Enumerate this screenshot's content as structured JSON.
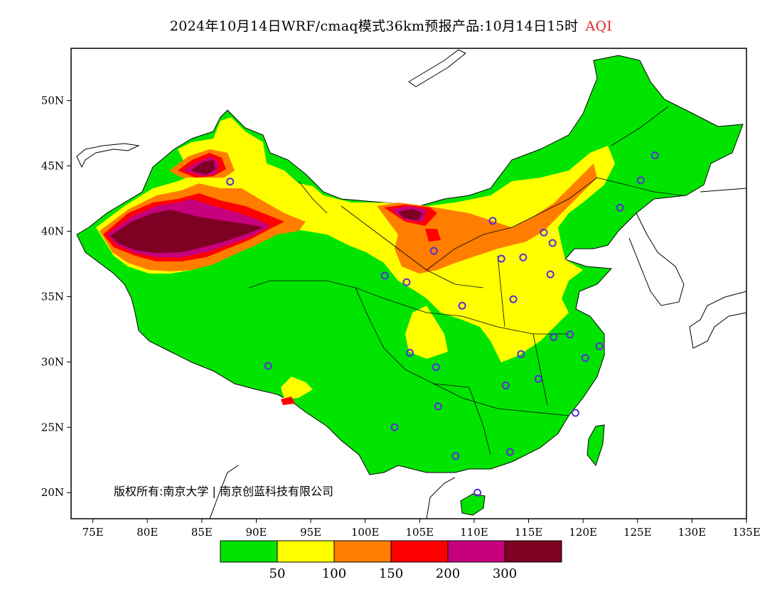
{
  "title": {
    "main": "2024年10月14日WRF/cmaq模式36km预报产品:10月14日15时",
    "variable": "AQI"
  },
  "map": {
    "lon_range": [
      73,
      135
    ],
    "lat_range": [
      18,
      54
    ],
    "x_ticks": [
      {
        "lon": 75,
        "label": "75E"
      },
      {
        "lon": 80,
        "label": "80E"
      },
      {
        "lon": 85,
        "label": "85E"
      },
      {
        "lon": 90,
        "label": "90E"
      },
      {
        "lon": 95,
        "label": "95E"
      },
      {
        "lon": 100,
        "label": "100E"
      },
      {
        "lon": 105,
        "label": "105E"
      },
      {
        "lon": 110,
        "label": "110E"
      },
      {
        "lon": 115,
        "label": "115E"
      },
      {
        "lon": 120,
        "label": "120E"
      },
      {
        "lon": 125,
        "label": "125E"
      },
      {
        "lon": 130,
        "label": "130E"
      },
      {
        "lon": 135,
        "label": "135E"
      }
    ],
    "y_ticks": [
      {
        "lat": 20,
        "label": "20N"
      },
      {
        "lat": 25,
        "label": "25N"
      },
      {
        "lat": 30,
        "label": "30N"
      },
      {
        "lat": 35,
        "label": "35N"
      },
      {
        "lat": 40,
        "label": "40N"
      },
      {
        "lat": 45,
        "label": "45N"
      },
      {
        "lat": 50,
        "label": "50N"
      }
    ],
    "copyright": "版权所有:南京大学 | 南京创蓝科技有限公司",
    "stations": [
      [
        87.6,
        43.8
      ],
      [
        91.1,
        29.7
      ],
      [
        101.8,
        36.6
      ],
      [
        103.8,
        36.1
      ],
      [
        106.3,
        38.5
      ],
      [
        111.7,
        40.8
      ],
      [
        116.4,
        39.9
      ],
      [
        117.2,
        39.1
      ],
      [
        114.5,
        38.0
      ],
      [
        112.5,
        37.9
      ],
      [
        117.0,
        36.7
      ],
      [
        113.6,
        34.8
      ],
      [
        108.9,
        34.3
      ],
      [
        104.1,
        30.7
      ],
      [
        106.5,
        29.6
      ],
      [
        106.7,
        26.6
      ],
      [
        102.7,
        25.0
      ],
      [
        108.3,
        22.8
      ],
      [
        113.3,
        23.1
      ],
      [
        110.3,
        20.0
      ],
      [
        119.3,
        26.1
      ],
      [
        115.9,
        28.7
      ],
      [
        112.9,
        28.2
      ],
      [
        114.3,
        30.6
      ],
      [
        117.3,
        31.9
      ],
      [
        118.8,
        32.1
      ],
      [
        120.2,
        30.3
      ],
      [
        121.5,
        31.2
      ],
      [
        123.4,
        41.8
      ],
      [
        125.3,
        43.9
      ],
      [
        126.6,
        45.8
      ]
    ]
  },
  "legend": {
    "colors": [
      "#00e400",
      "#ffff00",
      "#ff7e00",
      "#ff0000",
      "#c7007d",
      "#7e0023"
    ],
    "labels": [
      "50",
      "100",
      "150",
      "200",
      "300"
    ]
  }
}
